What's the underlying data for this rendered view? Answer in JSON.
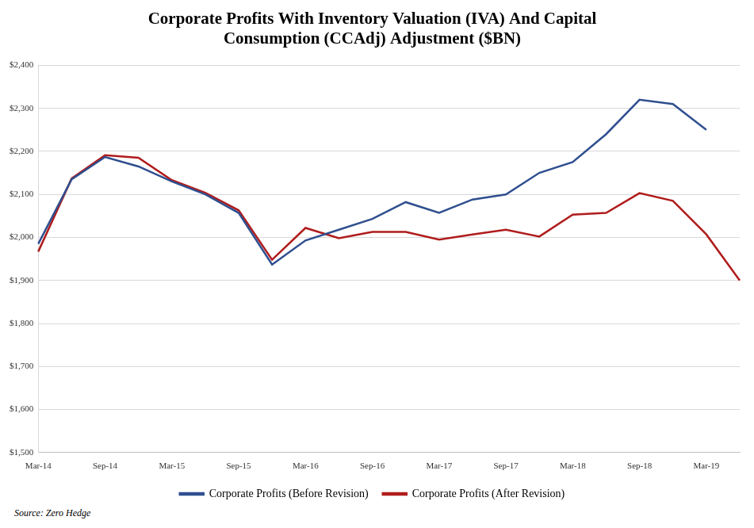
{
  "chart_data": {
    "type": "line",
    "title": [
      "Corporate Profits With Inventory Valuation (IVA) And Capital",
      "Consumption (CCAdj) Adjustment ($BN)"
    ],
    "source": "Source: Zero Hedge",
    "categories": [
      "Mar-14",
      null,
      "Sep-14",
      null,
      "Mar-15",
      null,
      "Sep-15",
      null,
      "Mar-16",
      null,
      "Sep-16",
      null,
      "Mar-17",
      null,
      "Sep-17",
      null,
      "Mar-18",
      null,
      "Sep-18",
      null,
      "Mar-19",
      null
    ],
    "series": [
      {
        "name": "Corporate Profits (Before Revision)",
        "color": "#2f4f8f",
        "values": [
          1985,
          2135,
          2187,
          2165,
          2130,
          2100,
          2057,
          1937,
          1993,
          2018,
          2043,
          2082,
          2057,
          2088,
          2100,
          2150,
          2175,
          2240,
          2320,
          2310,
          2250,
          null
        ]
      },
      {
        "name": "Corporate Profits (After Revision)",
        "color": "#b01c1c",
        "values": [
          1967,
          2137,
          2191,
          2185,
          2133,
          2104,
          2063,
          1948,
          2022,
          1998,
          2013,
          2013,
          1995,
          2007,
          2018,
          2002,
          2053,
          2057,
          2103,
          2085,
          2007,
          1900
        ]
      }
    ],
    "ylim": [
      1500,
      2400
    ],
    "yticks": [
      {
        "value": 1500,
        "label": "$1,500"
      },
      {
        "value": 1600,
        "label": "$1,600"
      },
      {
        "value": 1700,
        "label": "$1,700"
      },
      {
        "value": 1800,
        "label": "$1,800"
      },
      {
        "value": 1900,
        "label": "$1,900"
      },
      {
        "value": 2000,
        "label": "$2,000"
      },
      {
        "value": 2100,
        "label": "$2,100"
      },
      {
        "value": 2200,
        "label": "$2,200"
      },
      {
        "value": 2300,
        "label": "$2,300"
      },
      {
        "value": 2400,
        "label": "$2,400"
      }
    ],
    "grid": true,
    "legend": "bottom"
  }
}
